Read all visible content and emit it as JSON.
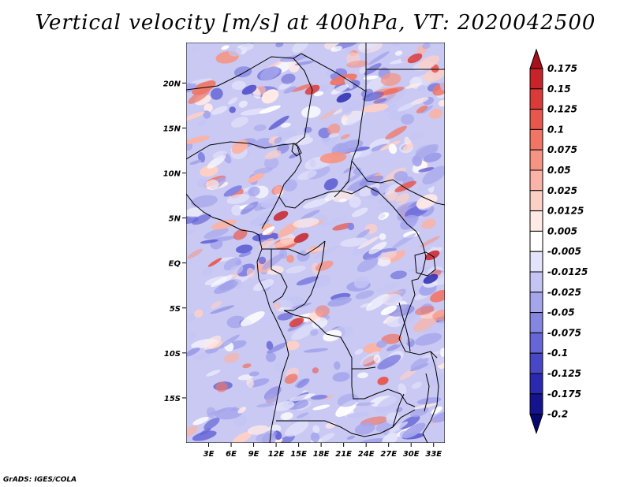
{
  "title": "Vertical velocity [m/s] at 400hPa, VT: 2020042500",
  "credit": "GrADS: IGES/COLA",
  "lat_labels": [
    "20N",
    "15N",
    "10N",
    "5N",
    "EQ",
    "5S",
    "10S",
    "15S"
  ],
  "lat_values": [
    20,
    15,
    10,
    5,
    0,
    -5,
    -10,
    -15
  ],
  "lon_labels": [
    "3E",
    "6E",
    "9E",
    "12E",
    "15E",
    "18E",
    "21E",
    "24E",
    "27E",
    "30E",
    "33E"
  ],
  "lon_values": [
    3,
    6,
    9,
    12,
    15,
    18,
    21,
    24,
    27,
    30,
    33
  ],
  "map_extent": {
    "lon_min": 0,
    "lon_max": 34.5,
    "lat_min": -20,
    "lat_max": 24.5
  },
  "colorbar": {
    "labels": [
      "0.175",
      "0.15",
      "0.125",
      "0.1",
      "0.075",
      "0.05",
      "0.025",
      "0.0125",
      "0.005",
      "-0.005",
      "-0.0125",
      "-0.025",
      "-0.05",
      "-0.075",
      "-0.1",
      "-0.125",
      "-0.175",
      "-0.2"
    ],
    "colors": [
      "#a8111b",
      "#c72328",
      "#db3b38",
      "#e8574d",
      "#f07565",
      "#f69483",
      "#fab3a6",
      "#fdd0c6",
      "#ffeae5",
      "#ffffff",
      "#e3e3fb",
      "#c5c5f5",
      "#a5a5ec",
      "#8585e2",
      "#6666d6",
      "#4848c6",
      "#2a2ab0",
      "#14148f",
      "#070770"
    ]
  }
}
